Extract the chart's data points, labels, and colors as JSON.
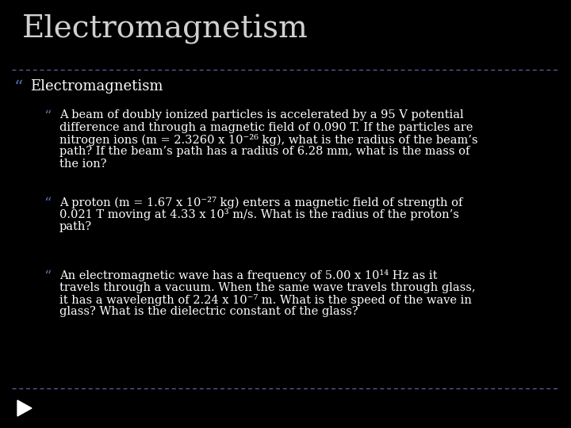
{
  "background_color": "#000000",
  "title": "Electromagnetism",
  "title_color": "#d0d0d0",
  "title_fontsize": 28,
  "separator_color": "#6060a0",
  "section_header": "Electromagnetism",
  "section_header_color": "#ffffff",
  "section_header_fontsize": 13,
  "bullet_color": "#4a70b0",
  "text_color": "#ffffff",
  "bullet_fontsize": 10.5,
  "bullet1_line1": "A beam of doubly ionized particles is accelerated by a 95 V potential",
  "bullet1_line2": "difference and through a magnetic field of 0.090 T. If the particles are",
  "bullet1_line3": "nitrogen ions (m = 2.3260 x 10⁻²⁶ kg), what is the radius of the beam’s",
  "bullet1_line4": "path? If the beam’s path has a radius of 6.28 mm, what is the mass of",
  "bullet1_line5": "the ion?",
  "bullet2_line1": "A proton (m = 1.67 x 10⁻²⁷ kg) enters a magnetic field of strength of",
  "bullet2_line2": "0.021 T moving at 4.33 x 10³ m/s. What is the radius of the proton’s",
  "bullet2_line3": "path?",
  "bullet3_line1": "An electromagnetic wave has a frequency of 5.00 x 10¹⁴ Hz as it",
  "bullet3_line2": "travels through a vacuum. When the same wave travels through glass,",
  "bullet3_line3": "it has a wavelength of 2.24 x 10⁻⁷ m. What is the speed of the wave in",
  "bullet3_line4": "glass? What is the dielectric constant of the glass?",
  "footer_arrow_color": "#ffffff"
}
